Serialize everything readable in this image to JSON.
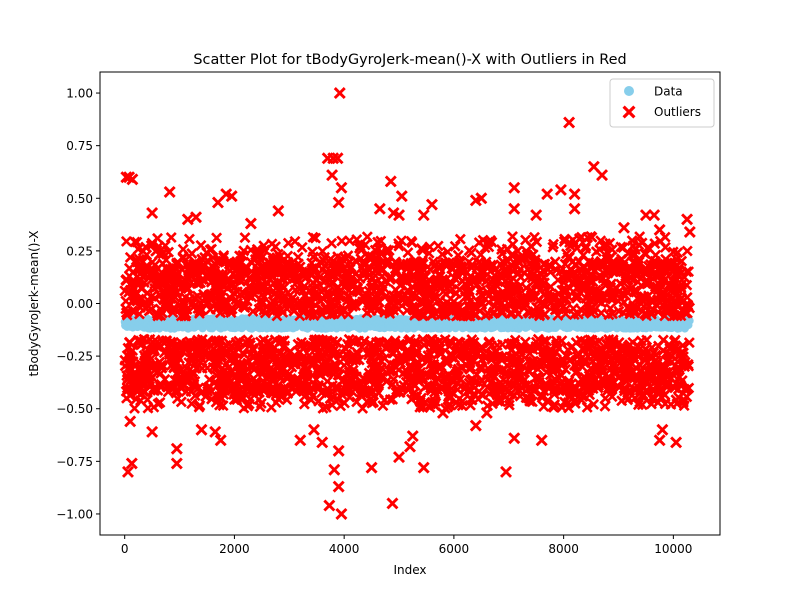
{
  "chart_data": {
    "type": "scatter",
    "title": "Scatter Plot for tBodyGyroJerk-mean()-X with Outliers in Red",
    "xlabel": "Index",
    "ylabel": "tBodyGyroJerk-mean()-X",
    "xlim": [
      -450,
      10850
    ],
    "ylim": [
      -1.1,
      1.1
    ],
    "xticks": [
      0,
      2000,
      4000,
      6000,
      8000,
      10000
    ],
    "xtick_labels": [
      "0",
      "2000",
      "4000",
      "6000",
      "8000",
      "10000"
    ],
    "yticks": [
      -1.0,
      -0.75,
      -0.5,
      -0.25,
      0.0,
      0.25,
      0.5,
      0.75,
      1.0
    ],
    "ytick_labels": [
      "−1.00",
      "−0.75",
      "−0.50",
      "−0.25",
      "0.00",
      "0.25",
      "0.50",
      "0.75",
      "1.00"
    ],
    "grid": false,
    "legend": {
      "position": "top-right"
    },
    "n_points": 10299,
    "x_range": [
      0,
      10298
    ],
    "series": [
      {
        "name": "Data",
        "color": "#87ceeb",
        "marker": "circle",
        "y_core": [
          -0.12,
          -0.07
        ]
      },
      {
        "name": "Outliers",
        "color": "#ff0000",
        "marker": "x-filled",
        "upper_band": [
          -0.06,
          0.2
        ],
        "lower_band": [
          -0.42,
          -0.17
        ],
        "points": [
          [
            30,
            0.6
          ],
          [
            80,
            0.6
          ],
          [
            140,
            0.59
          ],
          [
            60,
            -0.8
          ],
          [
            130,
            -0.76
          ],
          [
            100,
            -0.56
          ],
          [
            820,
            0.53
          ],
          [
            500,
            0.43
          ],
          [
            950,
            -0.69
          ],
          [
            950,
            -0.76
          ],
          [
            500,
            -0.61
          ],
          [
            1700,
            0.48
          ],
          [
            1850,
            0.52
          ],
          [
            1950,
            0.51
          ],
          [
            1300,
            0.41
          ],
          [
            1150,
            0.4
          ],
          [
            1750,
            -0.65
          ],
          [
            1650,
            -0.61
          ],
          [
            1400,
            -0.6
          ],
          [
            2300,
            0.38
          ],
          [
            2800,
            0.44
          ],
          [
            3200,
            -0.65
          ],
          [
            3450,
            -0.6
          ],
          [
            3700,
            0.69
          ],
          [
            3800,
            0.69
          ],
          [
            3880,
            0.69
          ],
          [
            3780,
            0.61
          ],
          [
            3900,
            0.48
          ],
          [
            3950,
            0.55
          ],
          [
            3920,
            1.0
          ],
          [
            3730,
            -0.96
          ],
          [
            3820,
            -0.79
          ],
          [
            3900,
            -0.87
          ],
          [
            3950,
            -1.0
          ],
          [
            3900,
            -0.7
          ],
          [
            3600,
            -0.66
          ],
          [
            4500,
            -0.78
          ],
          [
            4650,
            0.45
          ],
          [
            4850,
            0.58
          ],
          [
            4900,
            0.43
          ],
          [
            5000,
            0.42
          ],
          [
            5050,
            0.51
          ],
          [
            4880,
            -0.95
          ],
          [
            5000,
            -0.73
          ],
          [
            5200,
            -0.68
          ],
          [
            5250,
            -0.63
          ],
          [
            5450,
            -0.78
          ],
          [
            5450,
            0.42
          ],
          [
            5600,
            0.47
          ],
          [
            5800,
            -0.52
          ],
          [
            6400,
            0.49
          ],
          [
            6500,
            0.5
          ],
          [
            6400,
            -0.58
          ],
          [
            6600,
            -0.52
          ],
          [
            6950,
            -0.8
          ],
          [
            7100,
            0.55
          ],
          [
            7100,
            0.45
          ],
          [
            7100,
            -0.64
          ],
          [
            7500,
            0.42
          ],
          [
            7700,
            0.52
          ],
          [
            7600,
            -0.65
          ],
          [
            7950,
            0.54
          ],
          [
            8100,
            0.86
          ],
          [
            8200,
            0.52
          ],
          [
            8200,
            0.45
          ],
          [
            8550,
            0.65
          ],
          [
            8700,
            0.61
          ],
          [
            9500,
            0.42
          ],
          [
            9650,
            0.42
          ],
          [
            9750,
            0.35
          ],
          [
            9800,
            -0.6
          ],
          [
            9750,
            -0.65
          ],
          [
            10050,
            -0.66
          ],
          [
            10250,
            0.4
          ],
          [
            10300,
            0.34
          ],
          [
            8300,
            -0.42
          ],
          [
            9100,
            0.36
          ],
          [
            9300,
            -0.45
          ]
        ]
      }
    ]
  }
}
